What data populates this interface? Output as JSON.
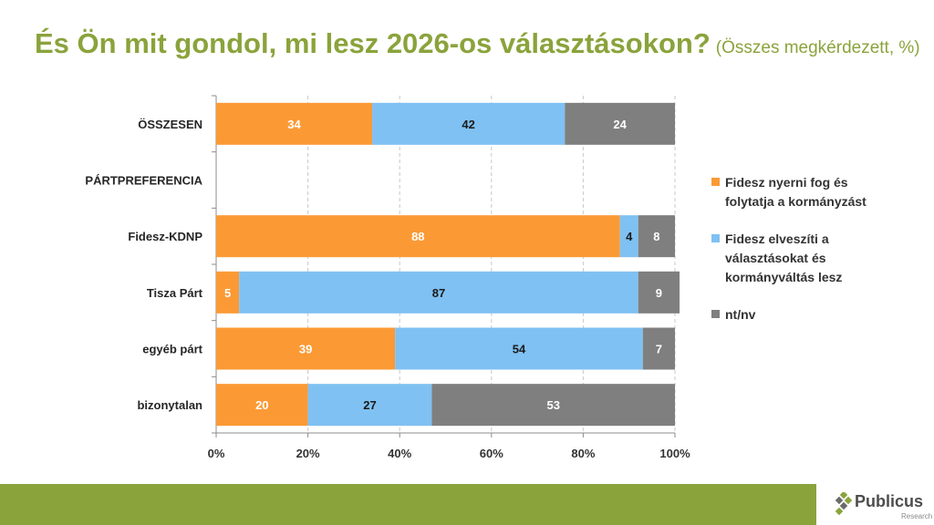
{
  "title": {
    "main": "És Ön mit gondol, mi lesz 2026-os választásokon?",
    "subtitle": "(Összes megkérdezett, %)"
  },
  "colors": {
    "title": "#8aa33b",
    "footer": "#8aa33b",
    "series": [
      "#fb9a35",
      "#7fc1f2",
      "#7f7f7f"
    ]
  },
  "chart_data": {
    "type": "bar",
    "orientation": "horizontal",
    "stacked": true,
    "categories": [
      "ÖSSZESEN",
      "PÁRTPREFERENCIA",
      "Fidesz-KDNP",
      "Tisza Párt",
      "egyéb párt",
      "bizonytalan"
    ],
    "series": [
      {
        "name": "Fidesz nyerni fog és folytatja a kormányzást",
        "values": [
          34,
          null,
          88,
          5,
          39,
          20
        ]
      },
      {
        "name": "Fidesz elveszíti a választásokat és kormányváltás lesz",
        "values": [
          42,
          null,
          4,
          87,
          54,
          27
        ]
      },
      {
        "name": "nt/nv",
        "values": [
          24,
          null,
          8,
          9,
          7,
          53
        ]
      }
    ],
    "xlim": [
      0,
      100
    ],
    "xticks": [
      "0%",
      "20%",
      "40%",
      "60%",
      "80%",
      "100%"
    ],
    "grid": true,
    "legend_position": "right"
  },
  "logo": {
    "name": "Publicus",
    "sub": "Research"
  }
}
